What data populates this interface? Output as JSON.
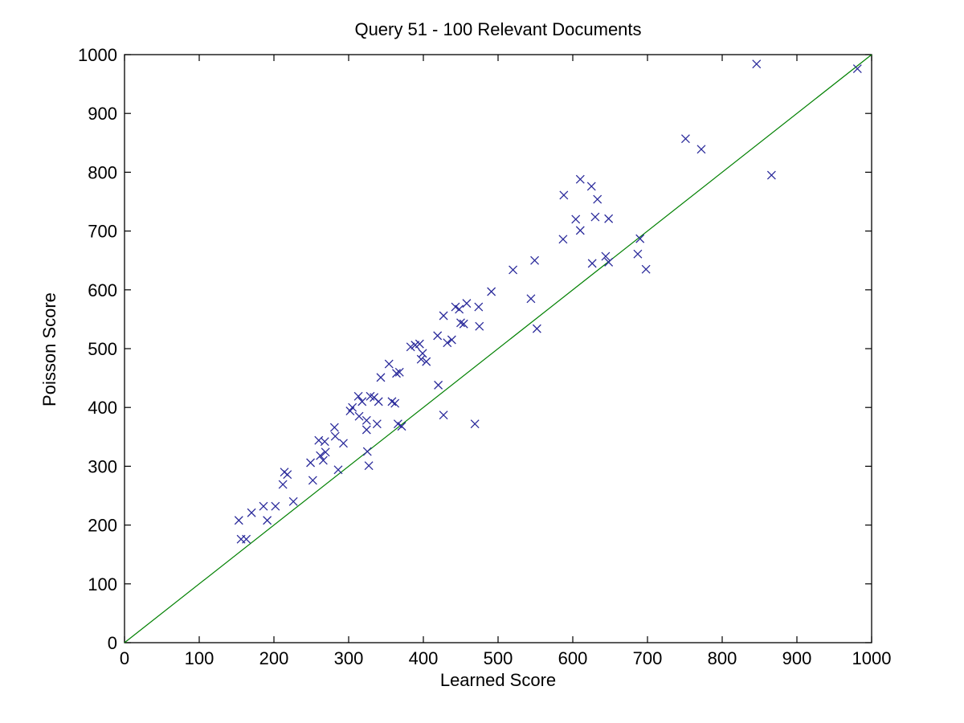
{
  "figure": {
    "title": "Query 51 - 100 Relevant Documents",
    "xlabel": "Learned Score",
    "ylabel": "Poisson Score"
  },
  "chart_data": {
    "type": "scatter",
    "title": "Query 51 - 100 Relevant Documents",
    "xlabel": "Learned Score",
    "ylabel": "Poisson Score",
    "xlim": [
      0,
      1000
    ],
    "ylim": [
      0,
      1000
    ],
    "x_ticks": [
      0,
      100,
      200,
      300,
      400,
      500,
      600,
      700,
      800,
      900,
      1000
    ],
    "y_ticks": [
      0,
      100,
      200,
      300,
      400,
      500,
      600,
      700,
      800,
      900,
      1000
    ],
    "grid": false,
    "legend": null,
    "marker": "x",
    "marker_color": "#2b2b9b",
    "axis_color": "#000000",
    "background_color": "#ffffff",
    "reference_line": {
      "from": [
        0,
        0
      ],
      "to": [
        1000,
        1000
      ],
      "color": "#008000"
    },
    "points": [
      [
        153,
        208
      ],
      [
        156,
        176
      ],
      [
        163,
        176
      ],
      [
        170,
        221
      ],
      [
        186,
        232
      ],
      [
        191,
        208
      ],
      [
        202,
        232
      ],
      [
        212,
        269
      ],
      [
        214,
        290
      ],
      [
        218,
        286
      ],
      [
        226,
        240
      ],
      [
        249,
        306
      ],
      [
        252,
        276
      ],
      [
        262,
        318
      ],
      [
        266,
        310
      ],
      [
        269,
        324
      ],
      [
        260,
        344
      ],
      [
        268,
        342
      ],
      [
        281,
        366
      ],
      [
        282,
        351
      ],
      [
        286,
        294
      ],
      [
        293,
        339
      ],
      [
        302,
        394
      ],
      [
        305,
        400
      ],
      [
        313,
        419
      ],
      [
        318,
        410
      ],
      [
        314,
        385
      ],
      [
        324,
        378
      ],
      [
        324,
        362
      ],
      [
        325,
        325
      ],
      [
        327,
        301
      ],
      [
        329,
        419
      ],
      [
        334,
        417
      ],
      [
        338,
        372
      ],
      [
        340,
        410
      ],
      [
        343,
        451
      ],
      [
        354,
        474
      ],
      [
        358,
        410
      ],
      [
        362,
        407
      ],
      [
        364,
        458
      ],
      [
        368,
        460
      ],
      [
        366,
        372
      ],
      [
        371,
        368
      ],
      [
        383,
        503
      ],
      [
        389,
        506
      ],
      [
        395,
        508
      ],
      [
        397,
        482
      ],
      [
        399,
        492
      ],
      [
        404,
        478
      ],
      [
        419,
        522
      ],
      [
        420,
        438
      ],
      [
        427,
        387
      ],
      [
        427,
        556
      ],
      [
        432,
        510
      ],
      [
        438,
        515
      ],
      [
        443,
        571
      ],
      [
        448,
        567
      ],
      [
        450,
        544
      ],
      [
        454,
        542
      ],
      [
        458,
        577
      ],
      [
        469,
        372
      ],
      [
        474,
        571
      ],
      [
        475,
        538
      ],
      [
        491,
        597
      ],
      [
        520,
        634
      ],
      [
        552,
        534
      ],
      [
        544,
        585
      ],
      [
        549,
        650
      ],
      [
        587,
        686
      ],
      [
        588,
        761
      ],
      [
        604,
        720
      ],
      [
        610,
        788
      ],
      [
        610,
        701
      ],
      [
        625,
        776
      ],
      [
        626,
        645
      ],
      [
        630,
        724
      ],
      [
        633,
        754
      ],
      [
        644,
        657
      ],
      [
        648,
        647
      ],
      [
        648,
        721
      ],
      [
        687,
        661
      ],
      [
        690,
        687
      ],
      [
        698,
        635
      ],
      [
        751,
        857
      ],
      [
        772,
        839
      ],
      [
        846,
        984
      ],
      [
        866,
        795
      ],
      [
        981,
        976
      ]
    ]
  }
}
